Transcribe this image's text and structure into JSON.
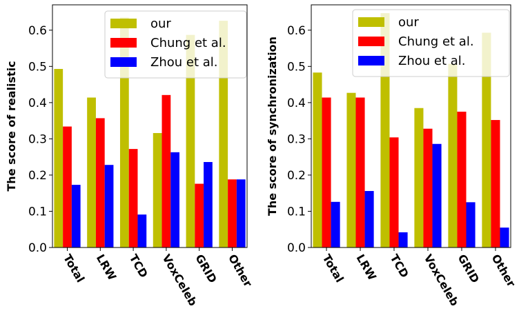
{
  "chart_data": [
    {
      "type": "bar",
      "categories": [
        "Total",
        "LRW",
        "TCD",
        "VoxCeleb",
        "GRID",
        "Other"
      ],
      "series": [
        {
          "name": "our",
          "color": "#bfbf00",
          "values": [
            0.493,
            0.414,
            0.635,
            0.316,
            0.587,
            0.626
          ]
        },
        {
          "name": "Chung et al.",
          "color": "#ff0000",
          "values": [
            0.334,
            0.357,
            0.272,
            0.421,
            0.176,
            0.188
          ]
        },
        {
          "name": "Zhou et al.",
          "color": "#0000ff",
          "values": [
            0.173,
            0.228,
            0.091,
            0.263,
            0.236,
            0.188
          ]
        }
      ],
      "ylabel": "The score of realistic",
      "xlabel": "",
      "ylim": [
        0,
        0.67
      ],
      "yticks": [
        "0.0",
        "0.1",
        "0.2",
        "0.3",
        "0.4",
        "0.5",
        "0.6"
      ],
      "legend": "top-right"
    },
    {
      "type": "bar",
      "categories": [
        "Total",
        "LRW",
        "TCD",
        "VoxCeleb",
        "GRID",
        "Other"
      ],
      "series": [
        {
          "name": "our",
          "color": "#bfbf00",
          "values": [
            0.483,
            0.427,
            0.647,
            0.385,
            0.507,
            0.593
          ]
        },
        {
          "name": "Chung et al.",
          "color": "#ff0000",
          "values": [
            0.414,
            0.414,
            0.304,
            0.328,
            0.375,
            0.352
          ]
        },
        {
          "name": "Zhou et al.",
          "color": "#0000ff",
          "values": [
            0.126,
            0.156,
            0.042,
            0.286,
            0.125,
            0.055
          ]
        }
      ],
      "ylabel": "The score of synchronization",
      "xlabel": "",
      "ylim": [
        0,
        0.67
      ],
      "yticks": [
        "0.0",
        "0.1",
        "0.2",
        "0.3",
        "0.4",
        "0.5",
        "0.6"
      ],
      "legend": "top-right"
    }
  ]
}
